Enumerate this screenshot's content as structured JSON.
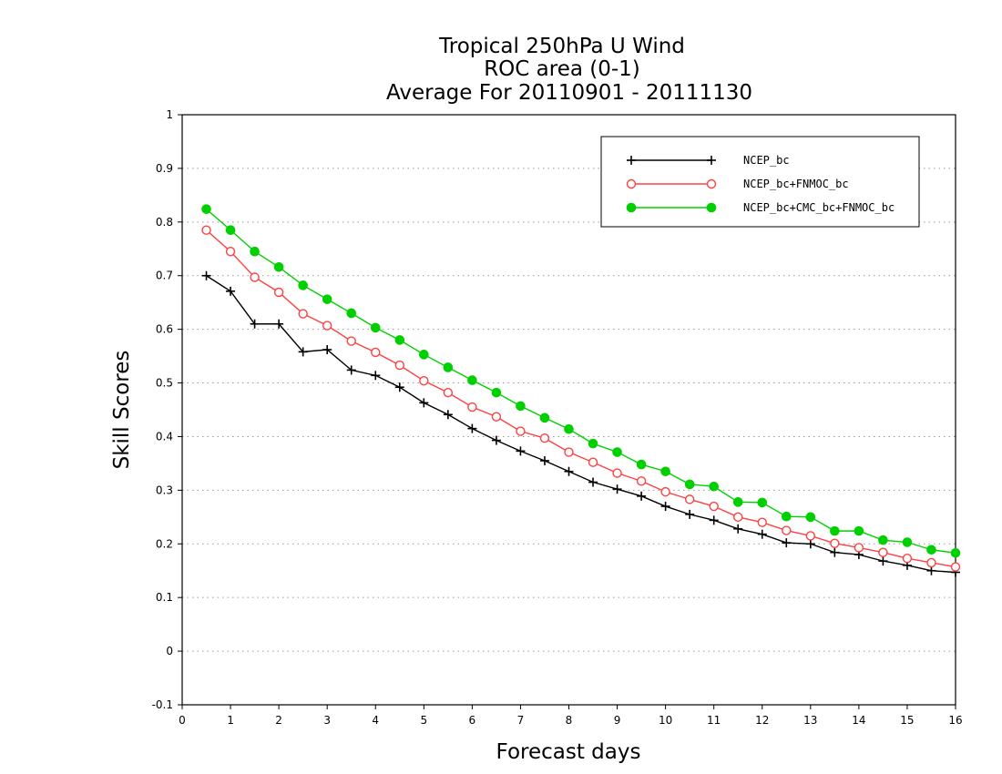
{
  "chart_data": {
    "type": "line",
    "title": [
      "Tropical 250hPa U Wind",
      "ROC area (0-1)",
      "Average For 20110901 - 20111130"
    ],
    "xlabel": "Forecast days",
    "ylabel": "Skill Scores",
    "xlim": [
      0,
      16
    ],
    "ylim": [
      -0.1,
      1
    ],
    "xticks": [
      "0",
      "1",
      "2",
      "3",
      "4",
      "5",
      "6",
      "7",
      "8",
      "9",
      "10",
      "11",
      "12",
      "13",
      "14",
      "15",
      "16"
    ],
    "yticks": [
      "-0.1",
      "0",
      "0.1",
      "0.2",
      "0.3",
      "0.4",
      "0.5",
      "0.6",
      "0.7",
      "0.8",
      "0.9",
      "1"
    ],
    "grid": "horizontal dotted",
    "legend_position": "top-right",
    "x": [
      0.5,
      1,
      1.5,
      2,
      2.5,
      3,
      3.5,
      4,
      4.5,
      5,
      5.5,
      6,
      6.5,
      7,
      7.5,
      8,
      8.5,
      9,
      9.5,
      10,
      10.5,
      11,
      11.5,
      12,
      12.5,
      13,
      13.5,
      14,
      14.5,
      15,
      15.5,
      16
    ],
    "series": [
      {
        "name": "NCEP_bc",
        "color": "#000000",
        "marker": "plus",
        "values": [
          0.7,
          0.671,
          0.61,
          0.61,
          0.558,
          0.562,
          0.524,
          0.514,
          0.492,
          0.463,
          0.441,
          0.415,
          0.393,
          0.373,
          0.355,
          0.335,
          0.315,
          0.302,
          0.289,
          0.27,
          0.255,
          0.244,
          0.228,
          0.218,
          0.202,
          0.2,
          0.184,
          0.18,
          0.168,
          0.16,
          0.15,
          0.147
        ]
      },
      {
        "name": "NCEP_bc+FNMOC_bc",
        "color": "#ff4040",
        "marker": "open-circle",
        "values": [
          0.785,
          0.745,
          0.697,
          0.669,
          0.629,
          0.607,
          0.578,
          0.557,
          0.533,
          0.504,
          0.482,
          0.455,
          0.437,
          0.41,
          0.397,
          0.371,
          0.352,
          0.332,
          0.317,
          0.297,
          0.283,
          0.27,
          0.25,
          0.24,
          0.225,
          0.215,
          0.201,
          0.193,
          0.184,
          0.173,
          0.165,
          0.157
        ]
      },
      {
        "name": "NCEP_bc+CMC_bc+FNMOC_bc",
        "color": "#00d000",
        "marker": "filled-circle",
        "values": [
          0.824,
          0.785,
          0.745,
          0.716,
          0.682,
          0.656,
          0.63,
          0.603,
          0.58,
          0.553,
          0.529,
          0.505,
          0.482,
          0.457,
          0.435,
          0.414,
          0.387,
          0.371,
          0.348,
          0.335,
          0.311,
          0.307,
          0.278,
          0.277,
          0.251,
          0.25,
          0.224,
          0.224,
          0.207,
          0.203,
          0.189,
          0.183
        ]
      }
    ]
  }
}
